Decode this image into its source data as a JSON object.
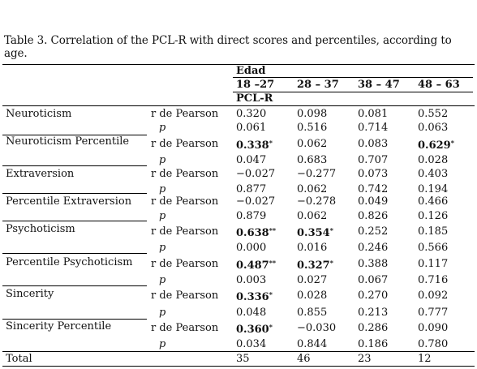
{
  "table": {
    "caption": "Table 3. Correlation of the PCL-R with direct scores and percentiles, according to age.",
    "group_header": "Edad",
    "age_groups": [
      "18 –27",
      "28 – 37",
      "38 – 47",
      "48 – 63"
    ],
    "sub_header": "PCL-R",
    "stat_labels": {
      "r": "r de Pearson",
      "p": "p"
    },
    "rows": [
      {
        "variable": "Neuroticism",
        "r": [
          {
            "v": "0.320",
            "bold": false,
            "sig": ""
          },
          {
            "v": "0.098",
            "bold": false,
            "sig": ""
          },
          {
            "v": "0.081",
            "bold": false,
            "sig": ""
          },
          {
            "v": "0.552",
            "bold": false,
            "sig": ""
          }
        ],
        "p": [
          "0.061",
          "0.516",
          "0.714",
          "0.063"
        ]
      },
      {
        "variable": "Neuroticism Percentile",
        "r": [
          {
            "v": "0.338",
            "bold": true,
            "sig": "*"
          },
          {
            "v": "0.062",
            "bold": false,
            "sig": ""
          },
          {
            "v": "0.083",
            "bold": false,
            "sig": ""
          },
          {
            "v": "0.629",
            "bold": true,
            "sig": "*"
          }
        ],
        "p": [
          "0.047",
          "0.683",
          "0.707",
          "0.028"
        ]
      },
      {
        "variable": "Extraversion",
        "r": [
          {
            "v": "−0.027",
            "bold": false,
            "sig": ""
          },
          {
            "v": "−0.277",
            "bold": false,
            "sig": ""
          },
          {
            "v": "0.073",
            "bold": false,
            "sig": ""
          },
          {
            "v": "0.403",
            "bold": false,
            "sig": ""
          }
        ],
        "p": [
          "0.877",
          "0.062",
          "0.742",
          "0.194"
        ]
      },
      {
        "variable": "Percentile Extraversion",
        "r": [
          {
            "v": "−0.027",
            "bold": false,
            "sig": ""
          },
          {
            "v": "−0.278",
            "bold": false,
            "sig": ""
          },
          {
            "v": "0.049",
            "bold": false,
            "sig": ""
          },
          {
            "v": "0.466",
            "bold": false,
            "sig": ""
          }
        ],
        "p": [
          "0.879",
          "0.062",
          "0.826",
          "0.126"
        ]
      },
      {
        "variable": "Psychoticism",
        "r": [
          {
            "v": "0.638",
            "bold": true,
            "sig": "**"
          },
          {
            "v": "0.354",
            "bold": true,
            "sig": "*"
          },
          {
            "v": "0.252",
            "bold": false,
            "sig": ""
          },
          {
            "v": "0.185",
            "bold": false,
            "sig": ""
          }
        ],
        "p": [
          "0.000",
          "0.016",
          "0.246",
          "0.566"
        ]
      },
      {
        "variable": "Percentile Psychoticism",
        "r": [
          {
            "v": "0.487",
            "bold": true,
            "sig": "**"
          },
          {
            "v": "0.327",
            "bold": true,
            "sig": "*"
          },
          {
            "v": "0.388",
            "bold": false,
            "sig": ""
          },
          {
            "v": "0.117",
            "bold": false,
            "sig": ""
          }
        ],
        "p": [
          "0.003",
          "0.027",
          "0.067",
          "0.716"
        ]
      },
      {
        "variable": "Sincerity",
        "r": [
          {
            "v": "0.336",
            "bold": true,
            "sig": "*"
          },
          {
            "v": "0.028",
            "bold": false,
            "sig": ""
          },
          {
            "v": "0.270",
            "bold": false,
            "sig": ""
          },
          {
            "v": "0.092",
            "bold": false,
            "sig": ""
          }
        ],
        "p": [
          "0.048",
          "0.855",
          "0.213",
          "0.777"
        ]
      },
      {
        "variable": "Sincerity Percentile",
        "r": [
          {
            "v": "0.360",
            "bold": true,
            "sig": "*"
          },
          {
            "v": "−0.030",
            "bold": false,
            "sig": ""
          },
          {
            "v": "0.286",
            "bold": false,
            "sig": ""
          },
          {
            "v": "0.090",
            "bold": false,
            "sig": ""
          }
        ],
        "p": [
          "0.034",
          "0.844",
          "0.186",
          "0.780"
        ]
      }
    ],
    "total": {
      "label": "Total",
      "values": [
        "35",
        "46",
        "23",
        "12"
      ]
    }
  }
}
